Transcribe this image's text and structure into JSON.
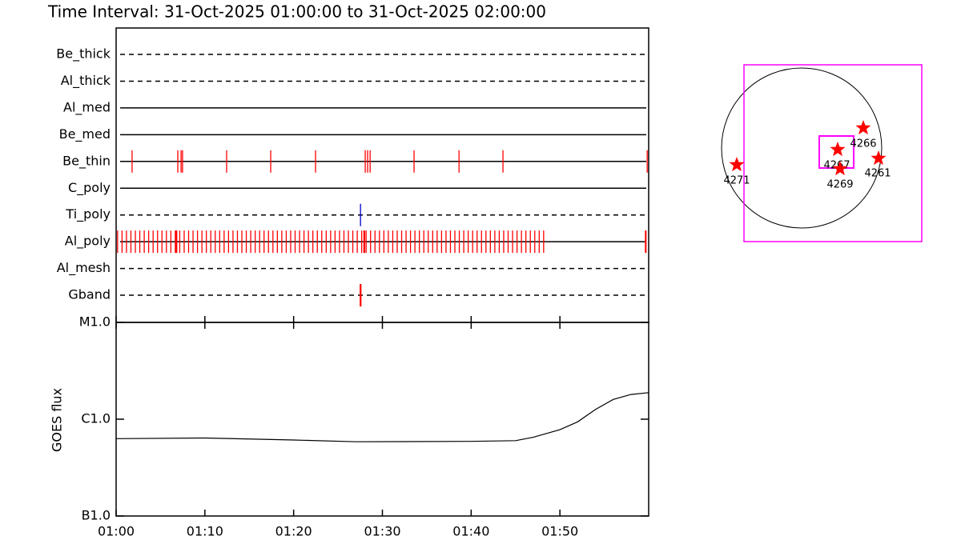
{
  "title": "Time Interval: 31-Oct-2025 01:00:00 to 31-Oct-2025 02:00:00",
  "chart_data": [
    {
      "type": "timeline",
      "xlim": [
        "01:00",
        "02:00"
      ],
      "rows": [
        {
          "name": "Be_thick",
          "style": "dashed",
          "color": "#ff0000",
          "events": []
        },
        {
          "name": "Al_thick",
          "style": "dashed",
          "color": "#ff0000",
          "events": []
        },
        {
          "name": "Al_med",
          "style": "solid",
          "color": "#ff0000",
          "events": []
        },
        {
          "name": "Be_med",
          "style": "solid",
          "color": "#ff0000",
          "events": []
        },
        {
          "name": "Be_thin",
          "style": "solid",
          "color": "#ff0000",
          "events": [
            "01:01:48",
            "01:06:57",
            "01:07:19",
            "01:07:29",
            "01:12:27",
            "01:17:25",
            "01:22:28",
            "01:28:04",
            "01:28:20",
            "01:28:37",
            "01:33:34",
            "01:38:38",
            "01:43:35",
            "01:59:50"
          ]
        },
        {
          "name": "C_poly",
          "style": "solid",
          "color": "#ff0000",
          "events": []
        },
        {
          "name": "Ti_poly",
          "style": "dashed",
          "color": "#0000cc",
          "events": [
            "01:27:32"
          ]
        },
        {
          "name": "Al_poly",
          "style": "solid",
          "color": "#ff0000",
          "events": [
            "01:00:10",
            "01:00:40",
            "01:01:10",
            "01:01:40",
            "01:02:10",
            "01:02:40",
            "01:03:10",
            "01:03:40",
            "01:04:10",
            "01:04:40",
            "01:05:10",
            "01:05:40",
            "01:06:10",
            "01:06:40",
            "01:06:45",
            "01:06:50",
            "01:07:10",
            "01:07:40",
            "01:08:10",
            "01:08:40",
            "01:09:10",
            "01:09:40",
            "01:10:10",
            "01:10:40",
            "01:11:10",
            "01:11:40",
            "01:12:10",
            "01:12:40",
            "01:13:10",
            "01:13:40",
            "01:14:10",
            "01:14:40",
            "01:15:10",
            "01:15:40",
            "01:16:10",
            "01:16:40",
            "01:17:10",
            "01:17:40",
            "01:18:10",
            "01:18:40",
            "01:19:10",
            "01:19:40",
            "01:20:10",
            "01:20:40",
            "01:21:10",
            "01:21:40",
            "01:22:10",
            "01:22:40",
            "01:23:10",
            "01:23:40",
            "01:24:10",
            "01:24:40",
            "01:25:10",
            "01:25:40",
            "01:26:10",
            "01:26:40",
            "01:27:10",
            "01:27:40",
            "01:27:55",
            "01:28:00",
            "01:28:10",
            "01:28:40",
            "01:29:10",
            "01:29:40",
            "01:30:10",
            "01:30:40",
            "01:31:10",
            "01:31:40",
            "01:32:10",
            "01:32:40",
            "01:33:10",
            "01:33:40",
            "01:34:10",
            "01:34:40",
            "01:35:10",
            "01:35:40",
            "01:36:10",
            "01:36:40",
            "01:37:10",
            "01:37:40",
            "01:38:10",
            "01:38:40",
            "01:39:10",
            "01:39:40",
            "01:40:10",
            "01:40:40",
            "01:41:10",
            "01:41:40",
            "01:42:10",
            "01:42:40",
            "01:43:10",
            "01:43:40",
            "01:44:10",
            "01:44:40",
            "01:45:10",
            "01:45:40",
            "01:46:10",
            "01:46:40",
            "01:47:10",
            "01:47:40",
            "01:48:10",
            "01:59:38",
            "01:59:42"
          ]
        },
        {
          "name": "Al_mesh",
          "style": "dashed",
          "color": "#ff0000",
          "events": []
        },
        {
          "name": "Gband",
          "style": "dashed",
          "color": "#ff0000",
          "events": [
            "01:27:30",
            "01:27:35"
          ]
        }
      ]
    },
    {
      "type": "line",
      "ylabel": "GOES flux",
      "log_scale": true,
      "color": "#000000",
      "xlim": [
        "01:00",
        "02:00"
      ],
      "xticks": [
        "01:00",
        "01:10",
        "01:20",
        "01:30",
        "01:40",
        "01:50"
      ],
      "ylim": [
        1e-07,
        1e-05
      ],
      "yticks": [
        {
          "value": 1e-07,
          "label": "B1.0"
        },
        {
          "value": 1e-06,
          "label": "C1.0"
        },
        {
          "value": 1e-05,
          "label": "M1.0"
        }
      ],
      "x": [
        "01:00",
        "01:10",
        "01:20",
        "01:27",
        "01:40",
        "01:45",
        "01:47",
        "01:50",
        "01:52",
        "01:54",
        "01:56",
        "01:58",
        "02:00"
      ],
      "values": [
        6.3e-07,
        6.4e-07,
        6.1e-07,
        5.85e-07,
        5.9e-07,
        6e-07,
        6.5e-07,
        7.8e-07,
        9.4e-07,
        1.26e-06,
        1.6e-06,
        1.8e-06,
        1.88e-06
      ]
    },
    {
      "type": "map",
      "regions": [
        {
          "label": "4271"
        },
        {
          "label": "4267"
        },
        {
          "label": "4266"
        },
        {
          "label": "4261"
        },
        {
          "label": "4269"
        }
      ]
    }
  ]
}
